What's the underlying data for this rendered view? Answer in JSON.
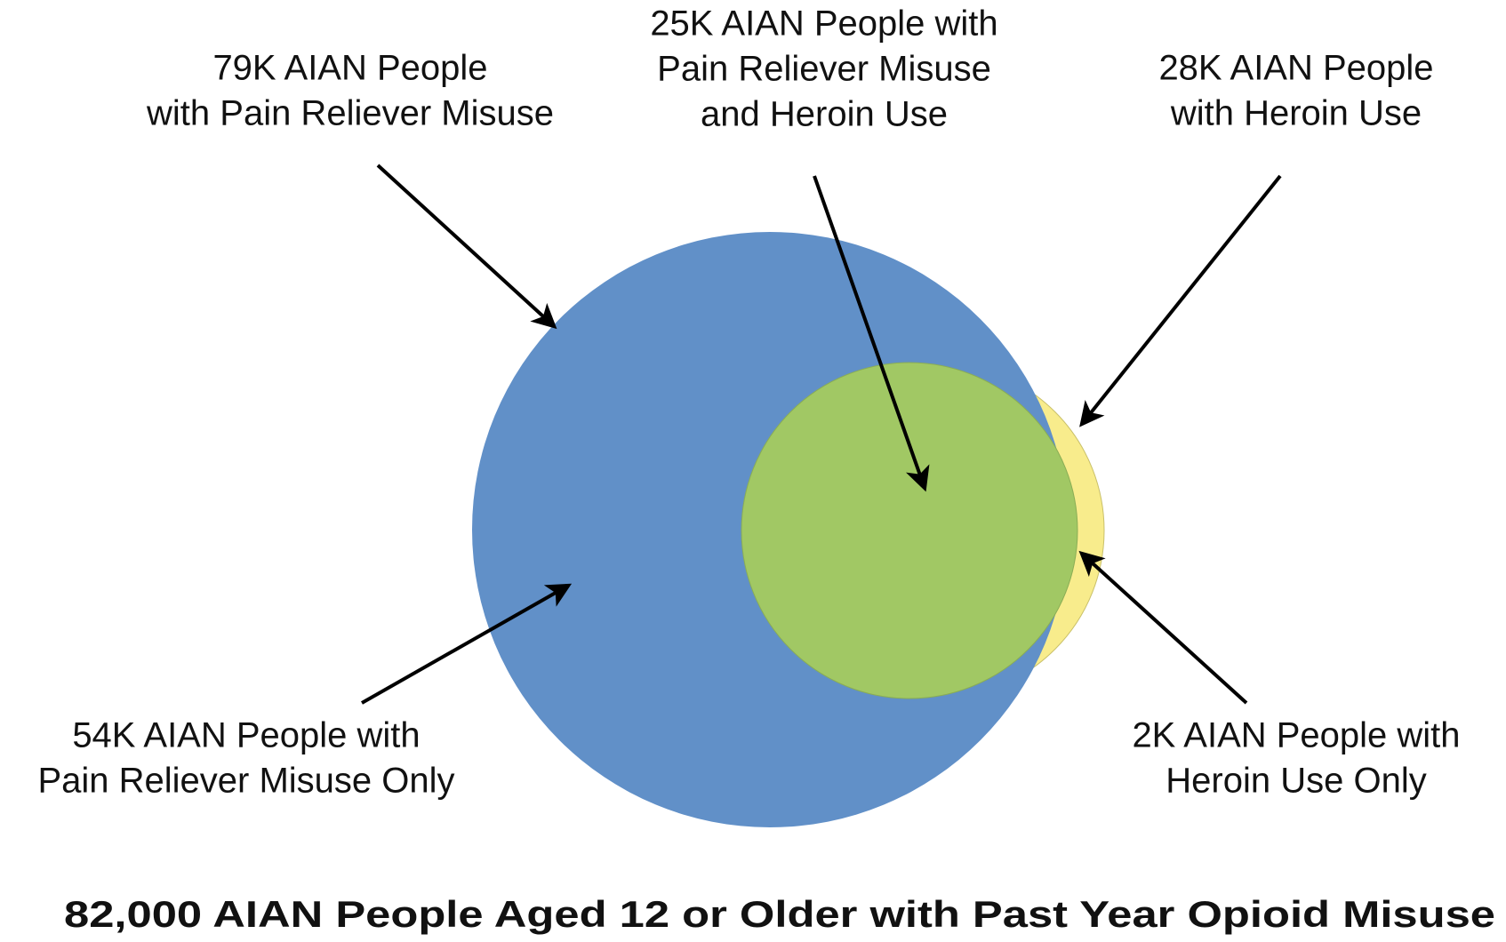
{
  "labels": [
    {
      "lines": [
        "79K AIAN People",
        "with Pain Reliever Misuse"
      ]
    },
    {
      "lines": [
        "25K AIAN People with",
        "Pain Reliever Misuse",
        "and Heroin Use"
      ]
    },
    {
      "lines": [
        "28K AIAN People",
        "with Heroin Use"
      ]
    },
    {
      "lines": [
        "54K AIAN People with",
        "Pain Reliever Misuse Only"
      ]
    },
    {
      "lines": [
        "2K AIAN People with",
        "Heroin Use Only"
      ]
    }
  ],
  "title": "82,000 AIAN People Aged 12 or Older with Past Year Opioid Misuse"
}
